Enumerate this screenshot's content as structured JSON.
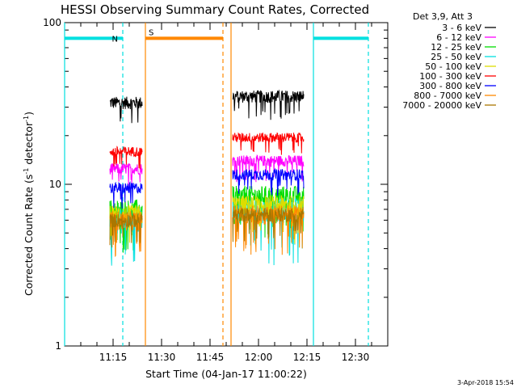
{
  "chart_data": {
    "type": "line",
    "title": "HESSI Observing Summary Count Rates, Corrected",
    "xlabel": "Start Time (04-Jan-17 11:00:22)",
    "ylabel_main": "Corrected Count Rate (s",
    "ylabel_exp1": "-1",
    "ylabel_mid": " detector",
    "ylabel_exp2": "-1",
    "ylabel_end": ")",
    "y_scale": "log",
    "ylim": [
      1,
      100
    ],
    "xlim_minutes": [
      0,
      100
    ],
    "x_ticks": [
      {
        "m": 15,
        "label": "11:15"
      },
      {
        "m": 30,
        "label": "11:30"
      },
      {
        "m": 45,
        "label": "11:45"
      },
      {
        "m": 60,
        "label": "12:00"
      },
      {
        "m": 75,
        "label": "12:15"
      },
      {
        "m": 90,
        "label": "12:30"
      }
    ],
    "y_ticks": [
      {
        "v": 1,
        "label": "1"
      },
      {
        "v": 10,
        "label": "10"
      },
      {
        "v": 100,
        "label": "100"
      }
    ],
    "legend_header": "Det 3,9, Att 3",
    "legend_position": "right",
    "series": [
      {
        "name": "3 - 6 keV",
        "color": "#000000",
        "seg1": 32,
        "seg2": 35,
        "noise": 0.09
      },
      {
        "name": "6 - 12 keV",
        "color": "#ff00ff",
        "seg1": 12.5,
        "seg2": 14,
        "noise": 0.08
      },
      {
        "name": "12 - 25 keV",
        "color": "#00dd00",
        "seg1": 7,
        "seg2": 8.5,
        "noise": 0.15
      },
      {
        "name": "25 - 50 keV",
        "color": "#00e0e0",
        "seg1": 6,
        "seg2": 7,
        "noise": 0.18
      },
      {
        "name": "50 - 100 keV",
        "color": "#dddd00",
        "seg1": 6.5,
        "seg2": 7.5,
        "noise": 0.14
      },
      {
        "name": "100 - 300 keV",
        "color": "#ff0000",
        "seg1": 16,
        "seg2": 19.5,
        "noise": 0.07
      },
      {
        "name": "300 - 800 keV",
        "color": "#0000ff",
        "seg1": 9.5,
        "seg2": 11.5,
        "noise": 0.08
      },
      {
        "name": "800 - 7000 keV",
        "color": "#ff8800",
        "seg1": 6,
        "seg2": 6.5,
        "noise": 0.14
      },
      {
        "name": "7000 - 20000 keV",
        "color": "#aa7700",
        "seg1": 6,
        "seg2": 6.5,
        "noise": 0.1
      }
    ],
    "segments_minutes": [
      [
        14,
        24
      ],
      [
        52,
        74
      ]
    ],
    "flag_bars": [
      {
        "flag": "night",
        "label": "N",
        "color": "#00e0e0",
        "start": 0,
        "end": 18
      },
      {
        "flag": "saa",
        "label": "S",
        "color": "#ff8800",
        "start": 25,
        "end": 49
      },
      {
        "flag": "night",
        "label": "",
        "color": "#00e0e0",
        "start": 77,
        "end": 94
      }
    ],
    "vlines": [
      {
        "m": 0,
        "color": "#00e0e0",
        "style": "solid"
      },
      {
        "m": 18,
        "color": "#00e0e0",
        "style": "dashed"
      },
      {
        "m": 25,
        "color": "#ff8800",
        "style": "solid"
      },
      {
        "m": 49,
        "color": "#ff8800",
        "style": "dashed"
      },
      {
        "m": 51.5,
        "color": "#ff8800",
        "style": "solid"
      },
      {
        "m": 77,
        "color": "#00e0e0",
        "style": "solid"
      },
      {
        "m": 94,
        "color": "#00e0e0",
        "style": "dashed"
      }
    ],
    "flag_level": 80
  },
  "footer_stamp": "3-Apr-2018 15:54"
}
